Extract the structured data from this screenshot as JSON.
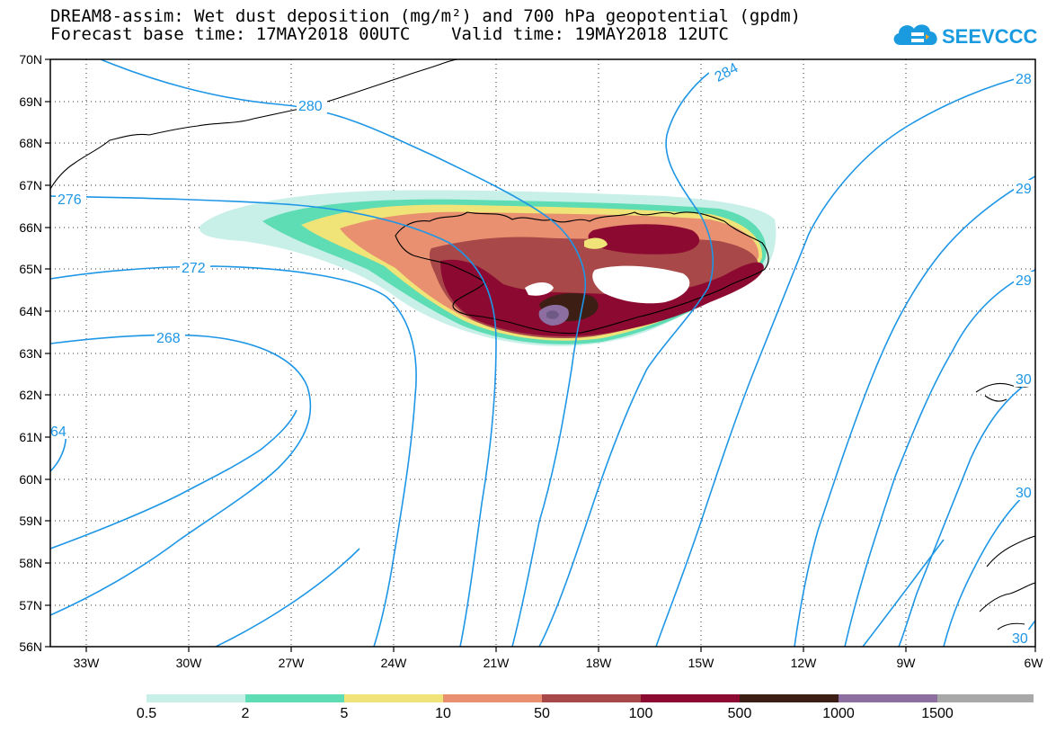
{
  "title": {
    "line1": "DREAM8-assim: Wet dust deposition (mg/m²) and 700 hPa geopotential (gpdm)",
    "line2": "Forecast base time: 17MAY2018 00UTC    Valid time: 19MAY2018 12UTC"
  },
  "logo": {
    "text": "SEEVCCC",
    "icon": "cloud-logo-icon",
    "color": "#1a9be0"
  },
  "axes": {
    "lat_labels": [
      "70N",
      "69N",
      "68N",
      "67N",
      "66N",
      "65N",
      "64N",
      "63N",
      "62N",
      "61N",
      "60N",
      "59N",
      "58N",
      "57N",
      "56N"
    ],
    "lon_labels": [
      "33W",
      "30W",
      "27W",
      "24W",
      "21W",
      "18W",
      "15W",
      "12W",
      "9W",
      "6W"
    ]
  },
  "contours": {
    "color": "#1e96e6",
    "labels": [
      "280",
      "284",
      "28",
      "276",
      "29",
      "272",
      "29",
      "268",
      "64",
      "30",
      "30",
      "30"
    ]
  },
  "legend": {
    "colors": [
      "#c8f0e8",
      "#5edcb4",
      "#f0e478",
      "#e89070",
      "#a84848",
      "#8c0a32",
      "#3c1e14",
      "#8c6ea0",
      "#a8a8a8"
    ],
    "labels": [
      "0.5",
      "2",
      "5",
      "10",
      "50",
      "100",
      "500",
      "1000",
      "1500"
    ]
  }
}
